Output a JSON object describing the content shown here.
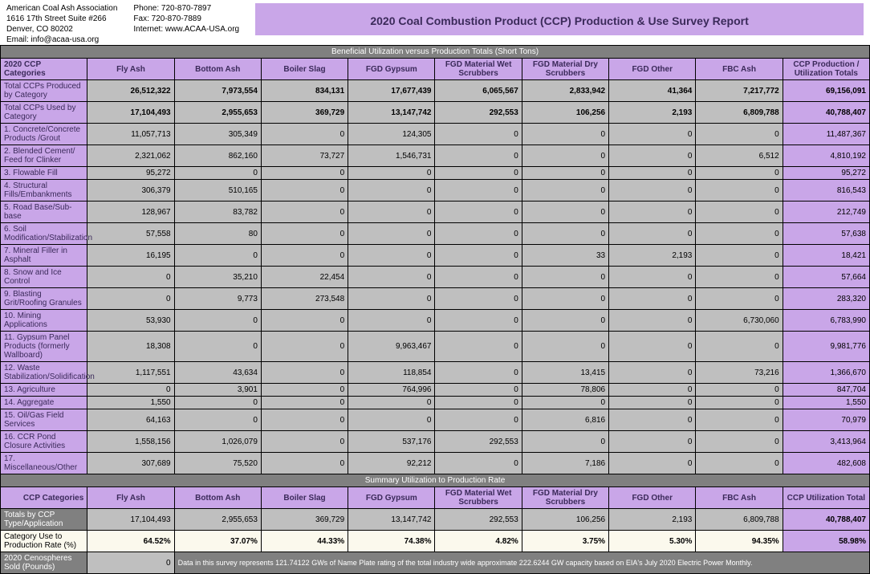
{
  "colors": {
    "purple": "#c9a6e8",
    "gray_dark": "#808080",
    "gray_light": "#bfbfbf",
    "cream": "#fbf9ed",
    "black": "#000000",
    "white": "#ffffff",
    "header_text": "#3b2a5a"
  },
  "org": {
    "name": "American Coal Ash Association",
    "addr1": "1616 17th Street Suite #266",
    "addr2": "Denver, CO 80202",
    "email": "Email: info@acaa-usa.org",
    "phone": "Phone: 720-870-7897",
    "fax": "Fax: 720-870-7889",
    "web": "Internet: www.ACAA-USA.org"
  },
  "title": "2020 Coal Combustion Product (CCP) Production & Use Survey Report",
  "band_main": "Beneficial Utilization versus Production Totals (Short Tons)",
  "columns_header_label": "2020 CCP Categories",
  "columns": [
    "Fly Ash",
    "Bottom Ash",
    "Boiler Slag",
    "FGD Gypsum",
    "FGD Material Wet Scrubbers",
    "FGD Material Dry Scrubbers",
    "FGD Other",
    "FBC Ash",
    "CCP Production / Utilization Totals"
  ],
  "produced": {
    "label": "Total CCPs Produced by Category",
    "vals": [
      "26,512,322",
      "7,973,554",
      "834,131",
      "17,677,439",
      "6,065,567",
      "2,833,942",
      "41,364",
      "7,217,772",
      "69,156,091"
    ]
  },
  "used": {
    "label": "Total CCPs Used by Category",
    "vals": [
      "17,104,493",
      "2,955,653",
      "369,729",
      "13,147,742",
      "292,553",
      "106,256",
      "2,193",
      "6,809,788",
      "40,788,407"
    ]
  },
  "detail_rows": [
    {
      "label": "1.  Concrete/Concrete Products /Grout",
      "vals": [
        "11,057,713",
        "305,349",
        "0",
        "124,305",
        "0",
        "0",
        "0",
        "0",
        "11,487,367"
      ]
    },
    {
      "label": "2.  Blended Cement/ Feed for Clinker",
      "vals": [
        "2,321,062",
        "862,160",
        "73,727",
        "1,546,731",
        "0",
        "0",
        "0",
        "6,512",
        "4,810,192"
      ]
    },
    {
      "label": "3.  Flowable Fill",
      "vals": [
        "95,272",
        "0",
        "0",
        "0",
        "0",
        "0",
        "0",
        "0",
        "95,272"
      ]
    },
    {
      "label": "4.  Structural Fills/Embankments",
      "vals": [
        "306,379",
        "510,165",
        "0",
        "0",
        "0",
        "0",
        "0",
        "0",
        "816,543"
      ]
    },
    {
      "label": "5.  Road Base/Sub-base",
      "vals": [
        "128,967",
        "83,782",
        "0",
        "0",
        "0",
        "0",
        "0",
        "0",
        "212,749"
      ]
    },
    {
      "label": "6.  Soil Modification/Stabilization",
      "vals": [
        "57,558",
        "80",
        "0",
        "0",
        "0",
        "0",
        "0",
        "0",
        "57,638"
      ]
    },
    {
      "label": "7.  Mineral Filler in Asphalt",
      "vals": [
        "16,195",
        "0",
        "0",
        "0",
        "0",
        "33",
        "2,193",
        "0",
        "18,421"
      ]
    },
    {
      "label": "8.  Snow and Ice Control",
      "vals": [
        "0",
        "35,210",
        "22,454",
        "0",
        "0",
        "0",
        "0",
        "0",
        "57,664"
      ]
    },
    {
      "label": "9.  Blasting Grit/Roofing Granules",
      "vals": [
        "0",
        "9,773",
        "273,548",
        "0",
        "0",
        "0",
        "0",
        "0",
        "283,320"
      ]
    },
    {
      "label": "10. Mining Applications",
      "vals": [
        "53,930",
        "0",
        "0",
        "0",
        "0",
        "0",
        "0",
        "6,730,060",
        "6,783,990"
      ]
    },
    {
      "label": "11. Gypsum Panel Products (formerly Wallboard)",
      "vals": [
        "18,308",
        "0",
        "0",
        "9,963,467",
        "0",
        "0",
        "0",
        "0",
        "9,981,776"
      ]
    },
    {
      "label": "12. Waste Stabilization/Solidification",
      "vals": [
        "1,117,551",
        "43,634",
        "0",
        "118,854",
        "0",
        "13,415",
        "0",
        "73,216",
        "1,366,670"
      ]
    },
    {
      "label": "13. Agriculture",
      "vals": [
        "0",
        "3,901",
        "0",
        "764,996",
        "0",
        "78,806",
        "0",
        "0",
        "847,704"
      ]
    },
    {
      "label": "14. Aggregate",
      "vals": [
        "1,550",
        "0",
        "0",
        "0",
        "0",
        "0",
        "0",
        "0",
        "1,550"
      ]
    },
    {
      "label": "15. Oil/Gas Field Services",
      "vals": [
        "64,163",
        "0",
        "0",
        "0",
        "0",
        "6,816",
        "0",
        "0",
        "70,979"
      ]
    },
    {
      "label": "16. CCR Pond Closure Activities",
      "vals": [
        "1,558,156",
        "1,026,079",
        "0",
        "537,176",
        "292,553",
        "0",
        "0",
        "0",
        "3,413,964"
      ]
    },
    {
      "label": "17. Miscellaneous/Other",
      "vals": [
        "307,689",
        "75,520",
        "0",
        "92,212",
        "0",
        "7,186",
        "0",
        "0",
        "482,608"
      ]
    }
  ],
  "band_summary": "Summary Utilization to Production Rate",
  "summary_header_label": "CCP Categories",
  "summary_columns_last": "CCP Utilization Total",
  "summary_totals": {
    "label": "Totals by CCP Type/Application",
    "vals": [
      "17,104,493",
      "2,955,653",
      "369,729",
      "13,147,742",
      "292,553",
      "106,256",
      "2,193",
      "6,809,788",
      "40,788,407"
    ]
  },
  "summary_rate": {
    "label": "Category Use to Production Rate (%)",
    "vals": [
      "64.52%",
      "37.07%",
      "44.33%",
      "74.38%",
      "4.82%",
      "3.75%",
      "5.30%",
      "94.35%",
      "58.98%"
    ]
  },
  "ceno_label": "2020 Cenospheres Sold (Pounds)",
  "ceno_val": "0",
  "footnote": "Data in this survey represents 121.74122 GWs of Name Plate rating of the total industry wide approximate 222.6244 GW capacity based on EIA's July 2020 Electric Power Monthly."
}
